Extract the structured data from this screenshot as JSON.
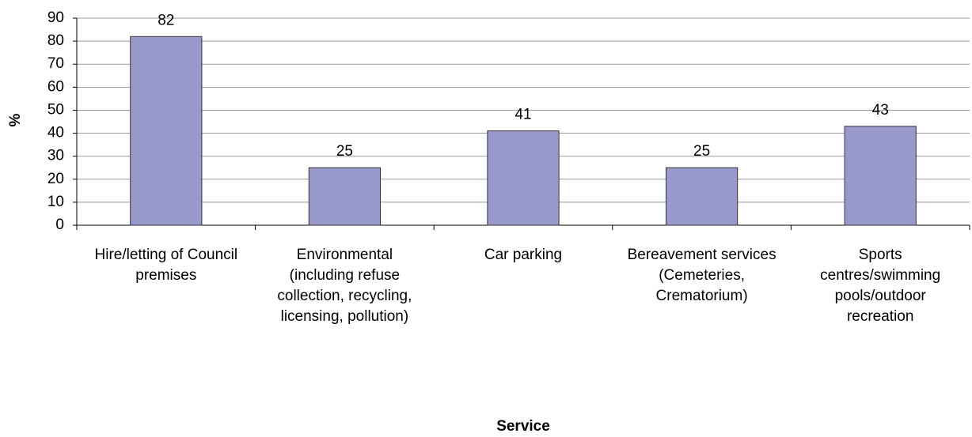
{
  "chart_data": {
    "type": "bar",
    "x_label": "Service",
    "y_label": "%",
    "categories": [
      "Hire/letting of Council premises",
      "Environmental (including refuse collection, recycling, licensing, pollution)",
      "Car parking",
      "Bereavement services (Cemeteries, Crematorium)",
      "Sports centres/swimming pools/outdoor recreation"
    ],
    "values": [
      82,
      25,
      41,
      25,
      43
    ],
    "color": "#9999cc",
    "ylim": [
      0,
      90
    ],
    "yticks": [
      0,
      10,
      20,
      30,
      40,
      50,
      60,
      70,
      80,
      90
    ],
    "grid": true
  }
}
